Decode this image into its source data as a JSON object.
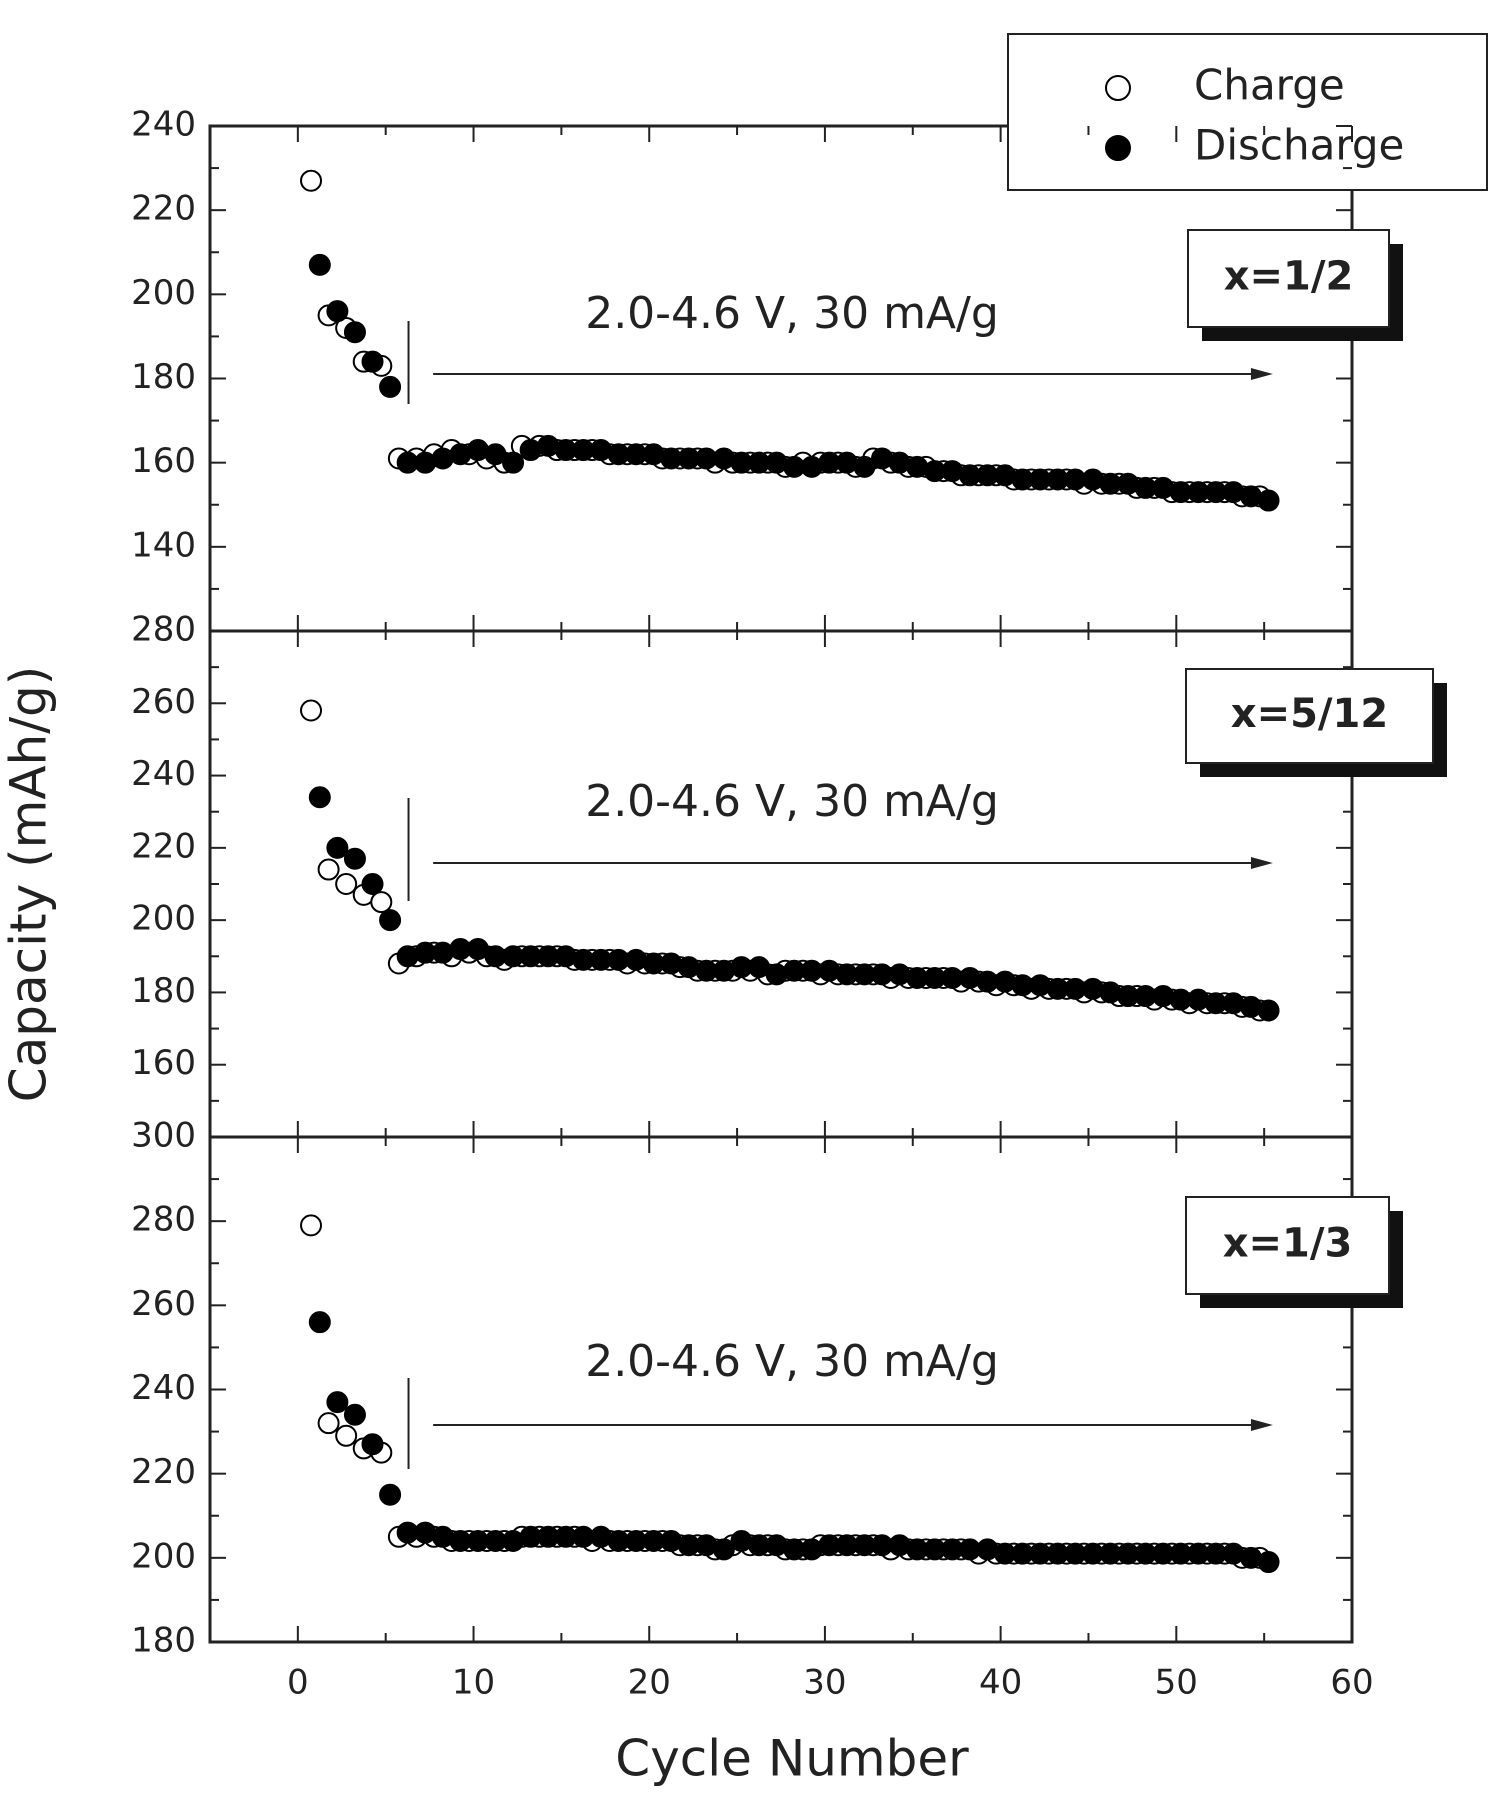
{
  "chart_data": [
    {
      "type": "scatter",
      "annotation": "2.0-4.6 V, 30 mA/g",
      "label": "x=1/2",
      "x": [
        1,
        2,
        3,
        4,
        5,
        6,
        7,
        8,
        9,
        10,
        11,
        12,
        13,
        14,
        15,
        16,
        17,
        18,
        19,
        20,
        21,
        22,
        23,
        24,
        25,
        26,
        27,
        28,
        29,
        30,
        31,
        32,
        33,
        34,
        35,
        36,
        37,
        38,
        39,
        40,
        41,
        42,
        43,
        44,
        45,
        46,
        47,
        48,
        49,
        50,
        51,
        52,
        53,
        54,
        55
      ],
      "xlim": [
        -5,
        60
      ],
      "ylim": [
        120,
        240
      ],
      "yticks": [
        140,
        160,
        180,
        200,
        220,
        240
      ],
      "series": [
        {
          "name": "Charge",
          "color": "#000000",
          "marker": "open",
          "values": [
            227,
            195,
            192,
            184,
            183,
            161,
            161,
            162,
            163,
            162,
            161,
            160,
            164,
            164,
            163,
            163,
            163,
            162,
            162,
            162,
            161,
            161,
            161,
            160,
            160,
            160,
            160,
            159,
            160,
            160,
            160,
            159,
            161,
            160,
            159,
            159,
            158,
            157,
            157,
            157,
            156,
            156,
            156,
            156,
            155,
            155,
            155,
            154,
            154,
            153,
            153,
            153,
            153,
            152,
            152
          ]
        },
        {
          "name": "Discharge",
          "color": "#000000",
          "marker": "filled",
          "values": [
            207,
            196,
            191,
            184,
            178,
            160,
            160,
            161,
            162,
            163,
            162,
            160,
            163,
            164,
            163,
            163,
            163,
            162,
            162,
            162,
            161,
            161,
            161,
            161,
            160,
            160,
            160,
            159,
            159,
            160,
            160,
            159,
            161,
            160,
            159,
            158,
            158,
            157,
            157,
            157,
            156,
            156,
            156,
            156,
            156,
            155,
            155,
            154,
            154,
            153,
            153,
            153,
            153,
            152,
            151
          ]
        }
      ]
    },
    {
      "type": "scatter",
      "annotation": "2.0-4.6 V, 30 mA/g",
      "label": "x=5/12",
      "y_label": "Capacity (mAh/g)",
      "x": [
        1,
        2,
        3,
        4,
        5,
        6,
        7,
        8,
        9,
        10,
        11,
        12,
        13,
        14,
        15,
        16,
        17,
        18,
        19,
        20,
        21,
        22,
        23,
        24,
        25,
        26,
        27,
        28,
        29,
        30,
        31,
        32,
        33,
        34,
        35,
        36,
        37,
        38,
        39,
        40,
        41,
        42,
        43,
        44,
        45,
        46,
        47,
        48,
        49,
        50,
        51,
        52,
        53,
        54,
        55
      ],
      "xlim": [
        -5,
        60
      ],
      "ylim": [
        140,
        280
      ],
      "yticks": [
        160,
        180,
        200,
        220,
        240,
        260,
        280
      ],
      "series": [
        {
          "color": "#000000",
          "marker": "open",
          "values": [
            258,
            214,
            210,
            207,
            205,
            188,
            190,
            191,
            190,
            191,
            190,
            189,
            190,
            190,
            190,
            189,
            189,
            189,
            188,
            188,
            188,
            187,
            186,
            186,
            186,
            186,
            185,
            186,
            186,
            185,
            185,
            185,
            185,
            184,
            184,
            184,
            184,
            183,
            183,
            182,
            182,
            181,
            181,
            181,
            180,
            180,
            179,
            179,
            178,
            178,
            177,
            177,
            177,
            176,
            175
          ]
        },
        {
          "color": "#000000",
          "marker": "filled",
          "values": [
            234,
            220,
            217,
            210,
            200,
            190,
            191,
            191,
            192,
            192,
            190,
            190,
            190,
            190,
            190,
            189,
            189,
            189,
            189,
            188,
            188,
            187,
            186,
            186,
            187,
            187,
            185,
            186,
            186,
            186,
            185,
            185,
            185,
            185,
            184,
            184,
            184,
            184,
            183,
            183,
            182,
            182,
            181,
            181,
            181,
            180,
            179,
            179,
            179,
            178,
            178,
            177,
            177,
            176,
            175
          ]
        }
      ]
    },
    {
      "type": "scatter",
      "annotation": "2.0-4.6 V, 30 mA/g",
      "label": "x=1/3",
      "x_label": "Cycle Number",
      "x": [
        1,
        2,
        3,
        4,
        5,
        6,
        7,
        8,
        9,
        10,
        11,
        12,
        13,
        14,
        15,
        16,
        17,
        18,
        19,
        20,
        21,
        22,
        23,
        24,
        25,
        26,
        27,
        28,
        29,
        30,
        31,
        32,
        33,
        34,
        35,
        36,
        37,
        38,
        39,
        40,
        41,
        42,
        43,
        44,
        45,
        46,
        47,
        48,
        49,
        50,
        51,
        52,
        53,
        54,
        55
      ],
      "xlim": [
        -5,
        60
      ],
      "xticks": [
        0,
        10,
        20,
        30,
        40,
        50,
        60
      ],
      "ylim": [
        180,
        300
      ],
      "yticks": [
        180,
        200,
        220,
        240,
        260,
        280,
        300
      ],
      "series": [
        {
          "color": "#000000",
          "marker": "open",
          "values": [
            279,
            232,
            229,
            226,
            225,
            205,
            205,
            205,
            204,
            204,
            204,
            204,
            205,
            205,
            205,
            205,
            204,
            204,
            204,
            204,
            204,
            203,
            203,
            202,
            203,
            203,
            203,
            202,
            202,
            203,
            203,
            203,
            203,
            202,
            202,
            202,
            202,
            202,
            201,
            201,
            201,
            201,
            201,
            201,
            201,
            201,
            201,
            201,
            201,
            201,
            201,
            201,
            201,
            200,
            200
          ]
        },
        {
          "color": "#000000",
          "marker": "filled",
          "values": [
            256,
            237,
            234,
            227,
            215,
            206,
            206,
            205,
            204,
            204,
            204,
            204,
            205,
            205,
            205,
            205,
            205,
            204,
            204,
            204,
            204,
            203,
            203,
            202,
            204,
            203,
            203,
            202,
            202,
            203,
            203,
            203,
            203,
            203,
            202,
            202,
            202,
            202,
            202,
            201,
            201,
            201,
            201,
            201,
            201,
            201,
            201,
            201,
            201,
            201,
            201,
            201,
            201,
            200,
            199
          ]
        }
      ]
    }
  ]
}
